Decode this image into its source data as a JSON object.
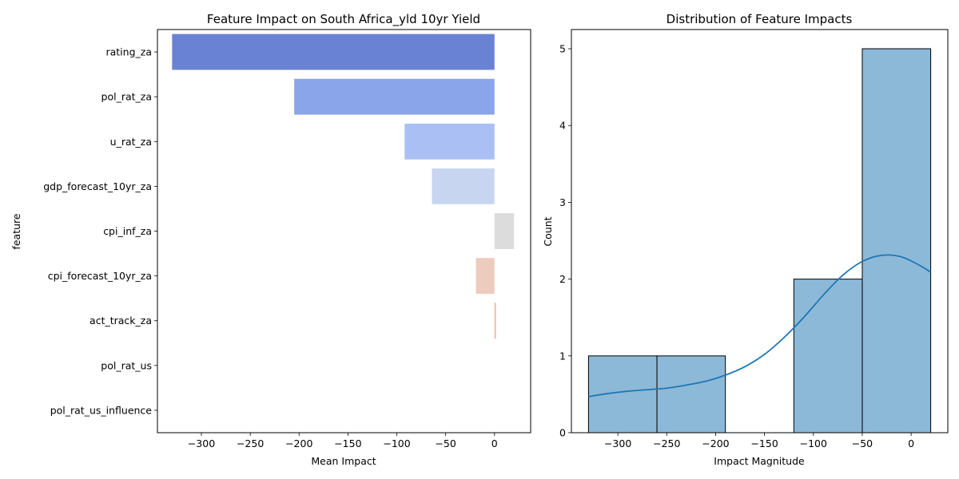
{
  "chart_data": [
    {
      "type": "bar",
      "orientation": "horizontal",
      "title": "Feature Impact on South Africa_yld 10yr Yield",
      "xlabel": "Mean Impact",
      "ylabel": "feature",
      "categories": [
        "rating_za",
        "pol_rat_za",
        "u_rat_za",
        "gdp_forecast_10yr_za",
        "cpi_inf_za",
        "cpi_forecast_10yr_za",
        "act_track_za",
        "pol_rat_us",
        "pol_rat_us_influence"
      ],
      "values": [
        -330,
        -205,
        -92,
        -64,
        20,
        -19,
        1.5,
        0,
        0
      ],
      "colors": [
        "#6a82d4",
        "#8aa5e9",
        "#aac0f5",
        "#c8d5f0",
        "#dcdcdc",
        "#ecccbe",
        "#e8b8a0",
        "#e0a890",
        "#d99880"
      ],
      "xlim": [
        -345,
        37
      ],
      "xticks": [
        -300,
        -250,
        -200,
        -150,
        -100,
        -50,
        0
      ],
      "xtick_labels": [
        "−300",
        "−250",
        "−200",
        "−150",
        "−100",
        "−50",
        "0"
      ],
      "grid": false
    },
    {
      "type": "histogram",
      "title": "Distribution of Feature Impacts",
      "xlabel": "Impact Magnitude",
      "ylabel": "Count",
      "bins": [
        {
          "x0": -330,
          "x1": -260,
          "count": 1
        },
        {
          "x0": -260,
          "x1": -190,
          "count": 1
        },
        {
          "x0": -190,
          "x1": -120,
          "count": 0
        },
        {
          "x0": -120,
          "x1": -50,
          "count": 2
        },
        {
          "x0": -50,
          "x1": 20,
          "count": 5
        }
      ],
      "kde": {
        "x": [
          -330,
          -310,
          -290,
          -270,
          -250,
          -230,
          -210,
          -190,
          -170,
          -150,
          -130,
          -110,
          -90,
          -70,
          -50,
          -30,
          -10,
          10,
          20
        ],
        "y": [
          0.47,
          0.51,
          0.54,
          0.56,
          0.58,
          0.62,
          0.67,
          0.75,
          0.86,
          1.02,
          1.24,
          1.5,
          1.79,
          2.05,
          2.23,
          2.31,
          2.29,
          2.17,
          2.09
        ]
      },
      "bar_color": "#8db9d9",
      "line_color": "#1f77b4",
      "xlim": [
        -347.5,
        37.5
      ],
      "ylim": [
        0,
        5.25
      ],
      "xticks": [
        -300,
        -250,
        -200,
        -150,
        -100,
        -50,
        0
      ],
      "xtick_labels": [
        "−300",
        "−250",
        "−200",
        "−150",
        "−100",
        "−50",
        "0"
      ],
      "yticks": [
        0,
        1,
        2,
        3,
        4,
        5
      ],
      "ytick_labels": [
        "0",
        "1",
        "2",
        "3",
        "4",
        "5"
      ],
      "grid": false
    }
  ]
}
